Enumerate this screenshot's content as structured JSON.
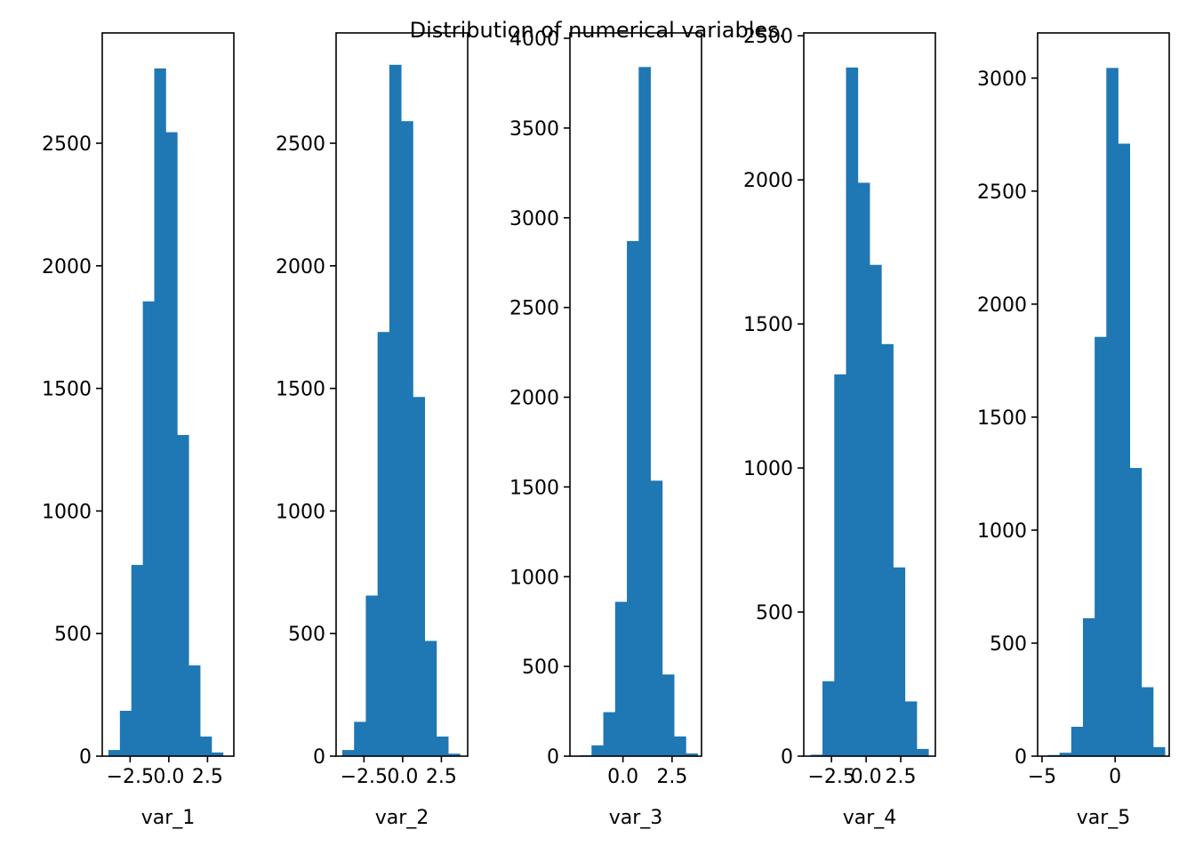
{
  "figure": {
    "title": "Distribution of numerical variables.",
    "bar_color": "#1f77b4",
    "axes_color": "#000000"
  },
  "chart_data": [
    {
      "type": "bar",
      "xlabel": "var_1",
      "xlim": [
        -4.3,
        4.2
      ],
      "ylim": [
        0,
        2950
      ],
      "xticks": [
        -2.5,
        0.0,
        2.5
      ],
      "xtick_labels": [
        "−2.5",
        "0.0",
        "2.5"
      ],
      "yticks": [
        0,
        500,
        1000,
        1500,
        2000,
        2500
      ],
      "bins": [
        -3.9,
        -3.16,
        -2.42,
        -1.68,
        -0.94,
        -0.2,
        0.54,
        1.28,
        2.02,
        2.76,
        3.5
      ],
      "counts": [
        25,
        185,
        780,
        1855,
        2805,
        2545,
        1310,
        370,
        80,
        15
      ],
      "grid": false
    },
    {
      "type": "bar",
      "xlabel": "var_2",
      "xlim": [
        -4.3,
        4.2
      ],
      "ylim": [
        0,
        2950
      ],
      "xticks": [
        -2.5,
        0.0,
        2.5
      ],
      "xtick_labels": [
        "−2.5",
        "0.0",
        "2.5"
      ],
      "yticks": [
        0,
        500,
        1000,
        1500,
        2000,
        2500
      ],
      "bins": [
        -3.9,
        -3.14,
        -2.38,
        -1.62,
        -0.86,
        -0.1,
        0.66,
        1.42,
        2.18,
        2.94,
        3.7
      ],
      "counts": [
        25,
        140,
        655,
        1730,
        2820,
        2590,
        1465,
        470,
        80,
        10
      ],
      "grid": false
    },
    {
      "type": "bar",
      "xlabel": "var_3",
      "xlim": [
        -2.7,
        4.0
      ],
      "ylim": [
        0,
        4030
      ],
      "xticks": [
        0.0,
        2.5
      ],
      "xtick_labels": [
        "0.0",
        "2.5"
      ],
      "yticks": [
        0,
        500,
        1000,
        1500,
        2000,
        2500,
        3000,
        3500,
        4000
      ],
      "bins": [
        -2.2,
        -1.6,
        -1.0,
        -0.4,
        0.2,
        0.8,
        1.4,
        2.0,
        2.6,
        3.2,
        3.8
      ],
      "counts": [
        5,
        60,
        245,
        860,
        2870,
        3840,
        1535,
        455,
        110,
        15
      ],
      "grid": false
    },
    {
      "type": "bar",
      "xlabel": "var_4",
      "xlim": [
        -4.5,
        5.0
      ],
      "ylim": [
        0,
        2510
      ],
      "xticks": [
        -2.5,
        0.0,
        2.5
      ],
      "xtick_labels": [
        "−2.5",
        "0.0",
        "2.5"
      ],
      "yticks": [
        0,
        500,
        1000,
        1500,
        2000,
        2500
      ],
      "bins": [
        -4.0,
        -3.15,
        -2.3,
        -1.45,
        -0.6,
        0.25,
        1.1,
        1.95,
        2.8,
        3.65,
        4.5
      ],
      "counts": [
        5,
        260,
        1325,
        2390,
        1990,
        1705,
        1430,
        655,
        190,
        25
      ],
      "grid": false
    },
    {
      "type": "bar",
      "xlabel": "var_5",
      "xlim": [
        -5.3,
        3.7
      ],
      "ylim": [
        0,
        3200
      ],
      "xticks": [
        -5,
        0
      ],
      "xtick_labels": [
        "−5",
        "0"
      ],
      "yticks": [
        0,
        500,
        1000,
        1500,
        2000,
        2500,
        3000
      ],
      "bins": [
        -4.6,
        -3.8,
        -3.0,
        -2.2,
        -1.4,
        -0.6,
        0.2,
        1.0,
        1.8,
        2.6,
        3.4
      ],
      "counts": [
        5,
        15,
        130,
        610,
        1855,
        3045,
        2710,
        1275,
        305,
        40
      ],
      "grid": false
    }
  ]
}
